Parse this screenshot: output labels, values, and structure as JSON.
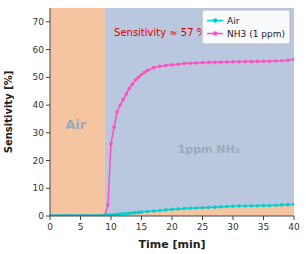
{
  "chart_data": {
    "type": "line",
    "xlabel": "Time [min]",
    "ylabel": "Sensitivity [%]",
    "xlim": [
      0,
      40
    ],
    "ylim": [
      0,
      75
    ],
    "xticks": [
      0,
      5,
      10,
      15,
      20,
      25,
      30,
      35,
      40
    ],
    "yticks": [
      0,
      10,
      20,
      30,
      40,
      50,
      60,
      70
    ],
    "legend": "upper right",
    "spans": [
      {
        "from": 0,
        "to": 9,
        "color": "#F5C4A0"
      },
      {
        "from": 9,
        "to": 40,
        "color": "#BAC8DF"
      }
    ],
    "annotations": [
      {
        "text": "Air",
        "x": 4.2,
        "y": 33,
        "color": "#9AAABB"
      },
      {
        "text": "1ppm NH₃",
        "x": 26,
        "y": 24,
        "color": "#9AAABB"
      },
      {
        "text": "Sensitivity ≈ 57 %",
        "x": 10.5,
        "y": 65,
        "color": "#DD0000"
      }
    ],
    "series": [
      {
        "name": "Air",
        "color": "#00D0D0",
        "marker": "circle",
        "x": [
          0,
          0.5,
          1,
          1.5,
          2,
          2.5,
          3,
          3.5,
          4,
          4.5,
          5,
          5.5,
          6,
          6.5,
          7,
          7.5,
          8,
          8.5,
          9,
          9.5,
          10,
          10.5,
          11,
          11.5,
          12,
          12.5,
          13,
          13.5,
          14,
          14.5,
          15,
          16,
          17,
          18,
          19,
          20,
          21,
          22,
          23,
          24,
          25,
          26,
          27,
          28,
          29,
          30,
          31,
          32,
          33,
          34,
          35,
          36,
          37,
          38,
          39,
          40
        ],
        "values": [
          0.1,
          0.1,
          0.1,
          0.1,
          0.1,
          0.1,
          0.1,
          0.1,
          0.1,
          0.1,
          0.1,
          0.1,
          0.1,
          0.1,
          0.1,
          0.1,
          0.1,
          0.1,
          0.2,
          0.3,
          0.4,
          0.5,
          0.6,
          0.7,
          0.8,
          0.9,
          1.0,
          1.1,
          1.2,
          1.3,
          1.4,
          1.6,
          1.8,
          2.0,
          2.2,
          2.4,
          2.5,
          2.7,
          2.8,
          2.9,
          3.0,
          3.1,
          3.2,
          3.3,
          3.4,
          3.5,
          3.6,
          3.6,
          3.7,
          3.7,
          3.8,
          3.8,
          3.9,
          4.0,
          4.1,
          4.2
        ]
      },
      {
        "name": "NH3 (1 ppm)",
        "color": "#FF50C0",
        "marker": "circle",
        "x": [
          0,
          0.5,
          1,
          1.5,
          2,
          2.5,
          3,
          3.5,
          4,
          4.5,
          5,
          5.5,
          6,
          6.5,
          7,
          7.5,
          8,
          8.5,
          9,
          9.5,
          10,
          10.5,
          11,
          11.5,
          12,
          12.5,
          13,
          13.5,
          14,
          14.5,
          15,
          15.5,
          16,
          17,
          18,
          19,
          20,
          21,
          22,
          23,
          24,
          25,
          26,
          27,
          28,
          29,
          30,
          31,
          32,
          33,
          34,
          35,
          36,
          37,
          38,
          39,
          40
        ],
        "values": [
          0.1,
          0.1,
          0.1,
          0.1,
          0.1,
          0.1,
          0.1,
          0.1,
          0.1,
          0.1,
          0.1,
          0.1,
          0.1,
          0.1,
          0.1,
          0.1,
          0.1,
          0.1,
          0.5,
          4.0,
          26.0,
          32.0,
          37.5,
          40.0,
          42.0,
          44.0,
          46.0,
          47.5,
          49.0,
          50.0,
          51.0,
          51.8,
          52.5,
          53.5,
          54.0,
          54.3,
          54.5,
          54.7,
          55.0,
          55.1,
          55.2,
          55.3,
          55.4,
          55.4,
          55.5,
          55.5,
          55.6,
          55.6,
          55.7,
          55.7,
          55.7,
          55.8,
          55.8,
          55.9,
          56.0,
          56.2,
          56.5
        ]
      }
    ]
  }
}
